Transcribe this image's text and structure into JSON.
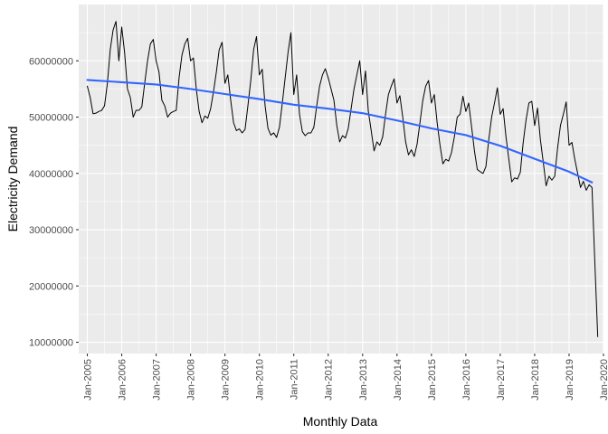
{
  "chart_data": {
    "type": "line",
    "xlabel": "Monthly Data",
    "ylabel": "Electricity Demand",
    "xlim": [
      "2004-10",
      "2020-01"
    ],
    "ylim": [
      8000000,
      70000000
    ],
    "x_ticks": [
      "Jan-2005",
      "Jan-2006",
      "Jan-2007",
      "Jan-2008",
      "Jan-2009",
      "Jan-2010",
      "Jan-2011",
      "Jan-2012",
      "Jan-2013",
      "Jan-2014",
      "Jan-2015",
      "Jan-2016",
      "Jan-2017",
      "Jan-2018",
      "Jan-2019",
      "Jan-2020"
    ],
    "y_ticks": [
      10000000,
      20000000,
      30000000,
      40000000,
      50000000,
      60000000
    ],
    "y_tick_labels": [
      "10000000",
      "20000000",
      "30000000",
      "40000000",
      "50000000",
      "60000000"
    ],
    "grid": true,
    "series": [
      {
        "kind": "observed",
        "color": "#000000",
        "x": [
          "2005-01",
          "2005-02",
          "2005-03",
          "2005-04",
          "2005-05",
          "2005-06",
          "2005-07",
          "2005-08",
          "2005-09",
          "2005-10",
          "2005-11",
          "2005-12",
          "2006-01",
          "2006-02",
          "2006-03",
          "2006-04",
          "2006-05",
          "2006-06",
          "2006-07",
          "2006-08",
          "2006-09",
          "2006-10",
          "2006-11",
          "2006-12",
          "2007-01",
          "2007-02",
          "2007-03",
          "2007-04",
          "2007-05",
          "2007-06",
          "2007-07",
          "2007-08",
          "2007-09",
          "2007-10",
          "2007-11",
          "2007-12",
          "2008-01",
          "2008-02",
          "2008-03",
          "2008-04",
          "2008-05",
          "2008-06",
          "2008-07",
          "2008-08",
          "2008-09",
          "2008-10",
          "2008-11",
          "2008-12",
          "2009-01",
          "2009-02",
          "2009-03",
          "2009-04",
          "2009-05",
          "2009-06",
          "2009-07",
          "2009-08",
          "2009-09",
          "2009-10",
          "2009-11",
          "2009-12",
          "2010-01",
          "2010-02",
          "2010-03",
          "2010-04",
          "2010-05",
          "2010-06",
          "2010-07",
          "2010-08",
          "2010-09",
          "2010-10",
          "2010-11",
          "2010-12",
          "2011-01",
          "2011-02",
          "2011-03",
          "2011-04",
          "2011-05",
          "2011-06",
          "2011-07",
          "2011-08",
          "2011-09",
          "2011-10",
          "2011-11",
          "2011-12",
          "2012-01",
          "2012-02",
          "2012-03",
          "2012-04",
          "2012-05",
          "2012-06",
          "2012-07",
          "2012-08",
          "2012-09",
          "2012-10",
          "2012-11",
          "2012-12",
          "2013-01",
          "2013-02",
          "2013-03",
          "2013-04",
          "2013-05",
          "2013-06",
          "2013-07",
          "2013-08",
          "2013-09",
          "2013-10",
          "2013-11",
          "2013-12",
          "2014-01",
          "2014-02",
          "2014-03",
          "2014-04",
          "2014-05",
          "2014-06",
          "2014-07",
          "2014-08",
          "2014-09",
          "2014-10",
          "2014-11",
          "2014-12",
          "2015-01",
          "2015-02",
          "2015-03",
          "2015-04",
          "2015-05",
          "2015-06",
          "2015-07",
          "2015-08",
          "2015-09",
          "2015-10",
          "2015-11",
          "2015-12",
          "2016-01",
          "2016-02",
          "2016-03",
          "2016-04",
          "2016-05",
          "2016-06",
          "2016-07",
          "2016-08",
          "2016-09",
          "2016-10",
          "2016-11",
          "2016-12",
          "2017-01",
          "2017-02",
          "2017-03",
          "2017-04",
          "2017-05",
          "2017-06",
          "2017-07",
          "2017-08",
          "2017-09",
          "2017-10",
          "2017-11",
          "2017-12",
          "2018-01",
          "2018-02",
          "2018-03",
          "2018-04",
          "2018-05",
          "2018-06",
          "2018-07",
          "2018-08",
          "2018-09",
          "2018-10",
          "2018-11",
          "2018-12",
          "2019-01",
          "2019-02",
          "2019-03",
          "2019-04",
          "2019-05",
          "2019-06",
          "2019-07",
          "2019-08",
          "2019-09",
          "2019-10",
          "2019-11"
        ],
        "y": [
          55500000,
          53500000,
          50600000,
          50700000,
          51000000,
          51200000,
          52000000,
          56000000,
          62000000,
          65500000,
          67000000,
          60000000,
          66000000,
          61500000,
          55000000,
          53500000,
          50000000,
          51200000,
          51200000,
          51800000,
          56000000,
          60000000,
          63000000,
          63800000,
          60000000,
          58000000,
          53000000,
          52000000,
          50000000,
          50700000,
          51000000,
          51200000,
          57000000,
          61000000,
          63000000,
          64000000,
          60000000,
          60500000,
          55000000,
          51000000,
          49000000,
          50200000,
          49800000,
          51500000,
          54500000,
          58000000,
          62000000,
          63300000,
          56000000,
          57500000,
          53000000,
          49000000,
          47600000,
          47900000,
          47200000,
          47800000,
          52000000,
          56500000,
          62000000,
          64300000,
          57500000,
          58500000,
          52000000,
          48000000,
          46800000,
          47200000,
          46400000,
          48200000,
          52500000,
          57000000,
          61500000,
          65000000,
          54000000,
          57500000,
          50500000,
          47400000,
          46700000,
          47200000,
          47200000,
          48200000,
          52000000,
          55500000,
          57500000,
          58600000,
          57000000,
          55000000,
          53000000,
          48500000,
          45600000,
          46700000,
          46300000,
          48000000,
          51500000,
          55000000,
          57500000,
          60000000,
          54000000,
          58200000,
          51000000,
          47600000,
          44000000,
          45600000,
          45000000,
          46500000,
          50500000,
          54000000,
          55500000,
          56800000,
          52500000,
          53800000,
          50000000,
          45600000,
          43300000,
          44200000,
          43000000,
          45200000,
          49000000,
          53000000,
          55500000,
          56500000,
          52500000,
          54000000,
          49000000,
          45000000,
          41700000,
          42500000,
          42200000,
          43700000,
          46500000,
          50000000,
          50500000,
          53700000,
          51000000,
          52500000,
          48300000,
          44000000,
          40700000,
          40300000,
          40000000,
          41200000,
          46000000,
          50000000,
          52500000,
          55200000,
          50500000,
          51500000,
          46500000,
          42500000,
          38500000,
          39200000,
          39000000,
          40200000,
          45500000,
          49500000,
          52500000,
          52800000,
          48500000,
          51600000,
          46000000,
          42000000,
          37800000,
          39500000,
          38800000,
          39500000,
          44500000,
          48500000,
          50500000,
          52700000,
          45000000,
          45500000,
          42500000,
          40000000,
          37500000,
          38600000,
          37000000,
          38000000,
          37500000,
          24000000,
          11000000
        ]
      },
      {
        "kind": "trend",
        "color": "#3366FF",
        "x": [
          "2005-01",
          "2006-01",
          "2007-01",
          "2008-01",
          "2009-01",
          "2010-01",
          "2011-01",
          "2012-01",
          "2013-01",
          "2014-01",
          "2015-01",
          "2016-01",
          "2017-01",
          "2018-01",
          "2019-01",
          "2019-09"
        ],
        "y": [
          56600000,
          56200000,
          55800000,
          55000000,
          54100000,
          53200000,
          52200000,
          51500000,
          50700000,
          49400000,
          48000000,
          46800000,
          44900000,
          42600000,
          40300000,
          38400000
        ]
      }
    ]
  }
}
